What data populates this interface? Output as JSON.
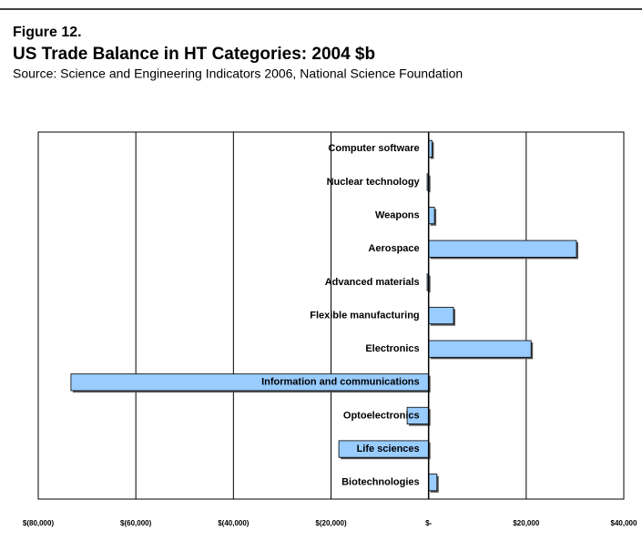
{
  "chart_data": {
    "type": "barh",
    "figure_label": "Figure 12.",
    "title": "US Trade Balance in HT Categories: 2004 $b",
    "subtitle": "Source: Science and Engineering Indicators 2006, National Science Foundation",
    "categories": [
      "Computer software",
      "Nuclear technology",
      "Weapons",
      "Aerospace",
      "Advanced materials",
      "Flexible manufacturing",
      "Electronics",
      "Information and communications",
      "Optoelectronics",
      "Life sciences",
      "Biotechnologies"
    ],
    "values": [
      700,
      -300,
      1200,
      30300,
      -300,
      5100,
      21000,
      -73300,
      -4400,
      -18400,
      1700
    ],
    "color": "#99ccff",
    "xlim": [
      -80000,
      40000
    ],
    "xticks": [
      {
        "value": -80000,
        "label": "$(80,000)"
      },
      {
        "value": -60000,
        "label": "$(60,000)"
      },
      {
        "value": -40000,
        "label": "$(40,000)"
      },
      {
        "value": -20000,
        "label": "$(20,000)"
      },
      {
        "value": 0,
        "label": "$-"
      },
      {
        "value": 20000,
        "label": "$20,000"
      },
      {
        "value": 40000,
        "label": "$40,000"
      }
    ],
    "grid": true
  }
}
